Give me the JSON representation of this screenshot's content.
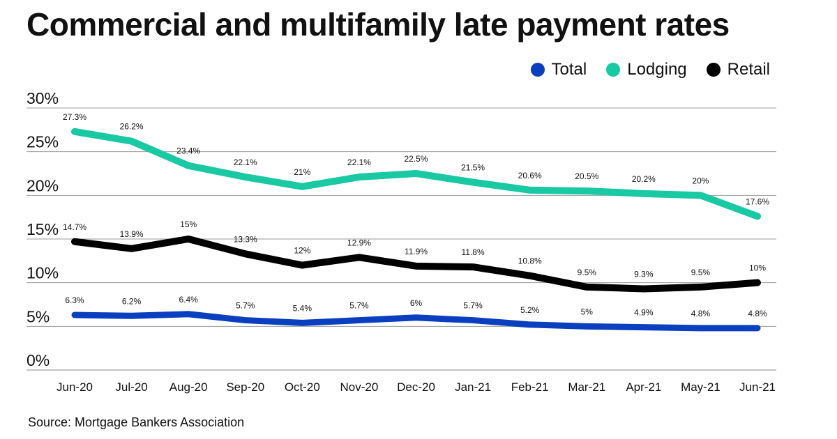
{
  "title": "Commercial and multifamily late payment rates",
  "source": "Source: Mortgage Bankers Association",
  "chart_data": {
    "type": "line",
    "categories": [
      "Jun-20",
      "Jul-20",
      "Aug-20",
      "Sep-20",
      "Oct-20",
      "Nov-20",
      "Dec-20",
      "Jan-21",
      "Feb-21",
      "Mar-21",
      "Apr-21",
      "May-21",
      "Jun-21"
    ],
    "y_ticks": [
      "0%",
      "5%",
      "10%",
      "15%",
      "20%",
      "25%",
      "30%"
    ],
    "ylim": [
      0,
      30
    ],
    "grid": true,
    "legend_position": "top-right",
    "series": [
      {
        "name": "Total",
        "color": "#0a3fbf",
        "values": [
          6.3,
          6.2,
          6.4,
          5.7,
          5.4,
          5.7,
          6,
          5.7,
          5.2,
          5,
          4.9,
          4.8,
          4.8
        ],
        "labels": [
          "6.3%",
          "6.2%",
          "6.4%",
          "5.7%",
          "5.4%",
          "5.7%",
          "6%",
          "5.7%",
          "5.2%",
          "5%",
          "4.9%",
          "4.8%",
          "4.8%"
        ]
      },
      {
        "name": "Lodging",
        "color": "#18c9a4",
        "values": [
          27.3,
          26.2,
          23.4,
          22.1,
          21,
          22.1,
          22.5,
          21.5,
          20.6,
          20.5,
          20.2,
          20,
          17.6
        ],
        "labels": [
          "27.3%",
          "26.2%",
          "23.4%",
          "22.1%",
          "21%",
          "22.1%",
          "22.5%",
          "21.5%",
          "20.6%",
          "20.5%",
          "20.2%",
          "20%",
          "17.6%"
        ]
      },
      {
        "name": "Retail",
        "color": "#000000",
        "values": [
          14.7,
          13.9,
          15,
          13.3,
          12,
          12.9,
          11.9,
          11.8,
          10.8,
          9.5,
          9.3,
          9.5,
          10
        ],
        "labels": [
          "14.7%",
          "13.9%",
          "15%",
          "13.3%",
          "12%",
          "12.9%",
          "11.9%",
          "11.8%",
          "10.8%",
          "9.5%",
          "9.3%",
          "9.5%",
          "10%"
        ]
      }
    ]
  }
}
